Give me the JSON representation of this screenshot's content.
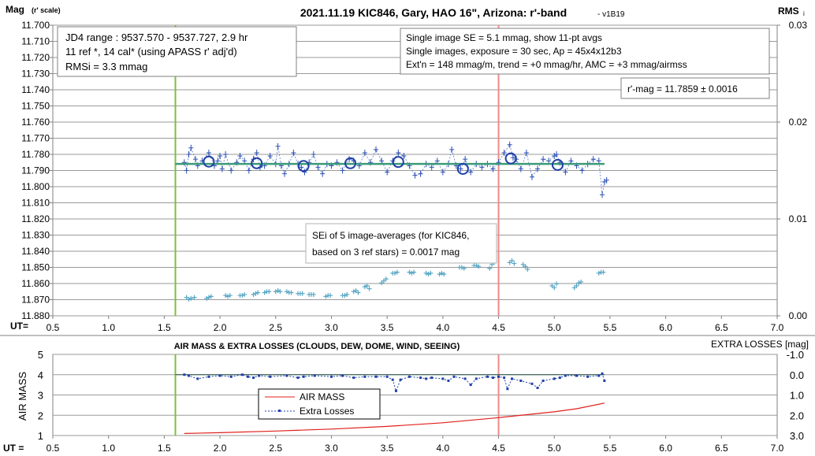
{
  "chart_data": [
    {
      "type": "line",
      "title": "2021.11.19 KIC846, Gary, HAO 16\", Arizona: r'-band",
      "version": "- v1B19",
      "ylabel_main": "Mag",
      "ylabel_sub": "(r' scale)",
      "y2label": "RMS",
      "y2label_sub": "i",
      "xlabel": "UT=",
      "xlim": [
        0.5,
        7.0
      ],
      "x_ticks": [
        "0.5",
        "1.0",
        "1.5",
        "2.0",
        "2.5",
        "3.0",
        "3.5",
        "4.0",
        "4.5",
        "5.0",
        "5.5",
        "6.0",
        "6.5",
        "7.0"
      ],
      "ylim": [
        11.7,
        11.88
      ],
      "y_ticks": [
        "11.700",
        "11.710",
        "11.720",
        "11.730",
        "11.740",
        "11.750",
        "11.760",
        "11.770",
        "11.780",
        "11.790",
        "11.800",
        "11.810",
        "11.820",
        "11.830",
        "11.840",
        "11.850",
        "11.860",
        "11.870",
        "11.880"
      ],
      "y2lim": [
        0.0,
        0.03
      ],
      "y2_ticks": [
        "0.03",
        "0.02",
        "0.01",
        "0.00"
      ],
      "vlines": [
        {
          "x": 1.6,
          "color": "#7dbf3c"
        },
        {
          "x": 4.5,
          "color": "#f08a8a"
        }
      ],
      "annotations": {
        "box_left": [
          "JD4 range : 9537.570 - 9537.727,  2.9  hr",
          "11 ref *, 14 cal* (using APASS r' adj'd)",
          "RMSi = 3.3 mmag"
        ],
        "box_right": [
          "Single image SE = 5.1 mmag, show  11-pt avgs",
          "Single images, exposure = 30 sec, Ap = 45x4x12b3",
          "Ext'n = 148 mmag/m, trend = +0  mmag/hr, AMC = +3 mmag/airmss"
        ],
        "box_mag": "r'-mag = 11.7859 ± 0.0016",
        "box_sei": [
          "SEi of 5 image-averages (for KIC846,",
          "based on 3 ref stars) = 0.0017 mag"
        ]
      },
      "series": [
        {
          "color": "#2a4fb0",
          "x": [
            1.68,
            1.7,
            1.72,
            1.74,
            1.78,
            1.8,
            1.84,
            1.9,
            1.95,
            1.98,
            2.0,
            2.02,
            2.05,
            2.1,
            2.15,
            2.18,
            2.22,
            2.26,
            2.3,
            2.33,
            2.36,
            2.4,
            2.45,
            2.5,
            2.52,
            2.55,
            2.58,
            2.62,
            2.66,
            2.7,
            2.73,
            2.76,
            2.8,
            2.84,
            2.88,
            2.92,
            2.96,
            3.0,
            3.05,
            3.1,
            3.13,
            3.16,
            3.2,
            3.25,
            3.3,
            3.35,
            3.4,
            3.45,
            3.5,
            3.55,
            3.6,
            3.65,
            3.7,
            3.75,
            3.8,
            3.85,
            3.9,
            3.95,
            4.0,
            4.05,
            4.08,
            4.12,
            4.16,
            4.2,
            4.25,
            4.3,
            4.35,
            4.4,
            4.45,
            4.5,
            4.55,
            4.6,
            4.63,
            4.66,
            4.7,
            4.75,
            4.8,
            4.85,
            4.9,
            4.95,
            5.0,
            5.02,
            5.05,
            5.1,
            5.15,
            5.2,
            5.25,
            5.3,
            5.35,
            5.4,
            5.43,
            5.45,
            5.47
          ],
          "y": [
            11.785,
            11.79,
            11.78,
            11.776,
            11.783,
            11.787,
            11.784,
            11.779,
            11.787,
            11.784,
            11.781,
            11.789,
            11.78,
            11.79,
            11.785,
            11.781,
            11.784,
            11.79,
            11.783,
            11.779,
            11.788,
            11.787,
            11.781,
            11.786,
            11.775,
            11.787,
            11.792,
            11.786,
            11.779,
            11.786,
            11.788,
            11.791,
            11.785,
            11.78,
            11.788,
            11.792,
            11.786,
            11.787,
            11.785,
            11.79,
            11.786,
            11.783,
            11.784,
            11.787,
            11.779,
            11.785,
            11.777,
            11.784,
            11.791,
            11.784,
            11.779,
            11.781,
            11.787,
            11.793,
            11.792,
            11.786,
            11.788,
            11.784,
            11.791,
            11.786,
            11.777,
            11.787,
            11.789,
            11.783,
            11.791,
            11.786,
            11.788,
            11.786,
            11.789,
            11.785,
            11.779,
            11.774,
            11.782,
            11.783,
            11.789,
            11.779,
            11.794,
            11.789,
            11.783,
            11.784,
            11.781,
            11.78,
            11.785,
            11.791,
            11.784,
            11.787,
            11.79,
            11.786,
            11.783,
            11.784,
            11.805,
            11.797,
            11.796
          ]
        },
        {
          "name": "11-pt avgs",
          "color": "#1f3fa8",
          "x": [
            1.9,
            2.33,
            2.75,
            3.17,
            3.6,
            4.18,
            4.61,
            5.03
          ],
          "y": [
            11.7845,
            11.7855,
            11.7872,
            11.7855,
            11.7847,
            11.789,
            11.7825,
            11.7865
          ]
        },
        {
          "name": "trend",
          "color": "#3c9a78",
          "x": [
            1.6,
            5.45
          ],
          "y": [
            11.7859,
            11.7859
          ]
        }
      ],
      "sei_series": {
        "color": "#5aa7c4",
        "x": [
          1.7,
          1.72,
          1.74,
          1.77,
          1.88,
          1.9,
          1.92,
          2.05,
          2.07,
          2.09,
          2.18,
          2.2,
          2.22,
          2.3,
          2.32,
          2.34,
          2.4,
          2.42,
          2.44,
          2.5,
          2.52,
          2.54,
          2.6,
          2.62,
          2.64,
          2.7,
          2.72,
          2.74,
          2.8,
          2.82,
          2.84,
          2.95,
          2.97,
          2.99,
          3.1,
          3.12,
          3.14,
          3.2,
          3.22,
          3.24,
          3.3,
          3.32,
          3.34,
          3.45,
          3.47,
          3.49,
          3.55,
          3.57,
          3.59,
          3.7,
          3.72,
          3.74,
          3.85,
          3.87,
          3.89,
          3.97,
          3.99,
          4.01,
          4.15,
          4.17,
          4.19,
          4.28,
          4.3,
          4.32,
          4.42,
          4.44,
          4.46,
          4.6,
          4.62,
          4.64,
          4.72,
          4.74,
          4.76,
          4.98,
          5.0,
          5.02,
          5.18,
          5.2,
          5.22,
          5.24,
          5.4,
          5.42,
          5.44
        ],
        "rms": [
          0.0019,
          0.0017,
          0.0018,
          0.0019,
          0.0018,
          0.0019,
          0.002,
          0.0021,
          0.002,
          0.0021,
          0.0021,
          0.0021,
          0.0022,
          0.0022,
          0.0023,
          0.0024,
          0.0024,
          0.0025,
          0.0025,
          0.0025,
          0.0026,
          0.0025,
          0.0025,
          0.0024,
          0.0024,
          0.0023,
          0.0023,
          0.0023,
          0.0022,
          0.0022,
          0.0022,
          0.002,
          0.0021,
          0.0021,
          0.0021,
          0.0021,
          0.0022,
          0.0025,
          0.0026,
          0.0024,
          0.003,
          0.0031,
          0.0028,
          0.0034,
          0.0036,
          0.0038,
          0.0044,
          0.0044,
          0.0045,
          0.0045,
          0.0044,
          0.0045,
          0.0044,
          0.0043,
          0.0044,
          0.0043,
          0.0044,
          0.0043,
          0.005,
          0.005,
          0.0049,
          0.0052,
          0.0052,
          0.0051,
          0.0049,
          0.0053,
          0.0055,
          0.0055,
          0.0057,
          0.0054,
          0.0053,
          0.0051,
          0.0048,
          0.0031,
          0.0029,
          0.0033,
          0.0029,
          0.0031,
          0.0034,
          0.0035,
          0.0044,
          0.0045,
          0.0045
        ]
      }
    },
    {
      "type": "line",
      "title": "AIR MASS & EXTRA LOSSES (CLOUDS, DEW, DOME, WIND, SEEING)",
      "xlabel": "UT =",
      "ylabel": "AIR MASS",
      "y2label": "EXTRA LOSSES [mag]",
      "xlim": [
        0.5,
        7.0
      ],
      "x_ticks": [
        "0.5",
        "1.0",
        "1.5",
        "2.0",
        "2.5",
        "3.0",
        "3.5",
        "4.0",
        "4.5",
        "5.0",
        "5.5",
        "6.0",
        "6.5",
        "7.0"
      ],
      "ylim": [
        1,
        5
      ],
      "y_ticks": [
        "5",
        "4",
        "3",
        "2",
        "1"
      ],
      "y2lim": [
        -1.0,
        3.0
      ],
      "y2_ticks": [
        "-1.0",
        "0.0",
        "1.0",
        "2.0",
        "3.0"
      ],
      "legend": {
        "placement": "center-left",
        "items": [
          "AIR MASS",
          "Extra Losses"
        ]
      },
      "vlines": [
        {
          "x": 1.6,
          "color": "#7dbf3c"
        },
        {
          "x": 4.5,
          "color": "#f08a8a"
        }
      ],
      "series": [
        {
          "name": "AIR MASS",
          "color": "#e0201b",
          "x": [
            1.68,
            2.0,
            2.5,
            3.0,
            3.5,
            4.0,
            4.5,
            5.0,
            5.2,
            5.45
          ],
          "y": [
            1.1,
            1.14,
            1.22,
            1.32,
            1.45,
            1.63,
            1.88,
            2.17,
            2.32,
            2.6
          ]
        },
        {
          "name": "Extra Losses",
          "color": "#1f3fa8",
          "x": [
            1.68,
            1.72,
            1.8,
            1.9,
            2.0,
            2.1,
            2.2,
            2.25,
            2.3,
            2.35,
            2.45,
            2.6,
            2.7,
            2.75,
            2.85,
            3.0,
            3.1,
            3.2,
            3.3,
            3.4,
            3.5,
            3.55,
            3.58,
            3.62,
            3.7,
            3.8,
            3.85,
            3.9,
            4.0,
            4.05,
            4.1,
            4.2,
            4.25,
            4.3,
            4.4,
            4.45,
            4.5,
            4.55,
            4.58,
            4.62,
            4.7,
            4.8,
            4.85,
            4.9,
            5.0,
            5.05,
            5.1,
            5.2,
            5.3,
            5.4,
            5.43,
            5.45
          ],
          "y": [
            0.0,
            0.05,
            0.2,
            0.1,
            0.05,
            0.1,
            0.0,
            0.1,
            0.15,
            0.05,
            0.1,
            0.05,
            0.15,
            0.1,
            0.05,
            0.1,
            0.05,
            0.15,
            0.1,
            0.1,
            0.1,
            0.25,
            0.8,
            0.25,
            0.1,
            0.15,
            0.2,
            0.15,
            0.2,
            0.3,
            0.1,
            0.2,
            0.5,
            0.2,
            0.1,
            0.15,
            0.1,
            0.15,
            0.7,
            0.2,
            0.3,
            0.45,
            0.65,
            0.3,
            0.2,
            0.15,
            0.05,
            0.05,
            0.1,
            0.05,
            -0.05,
            0.3
          ]
        },
        {
          "name": "baseline",
          "color": "#1f4f3f",
          "x": [
            1.6,
            5.45
          ],
          "y": [
            0.0,
            0.0
          ]
        }
      ]
    }
  ]
}
